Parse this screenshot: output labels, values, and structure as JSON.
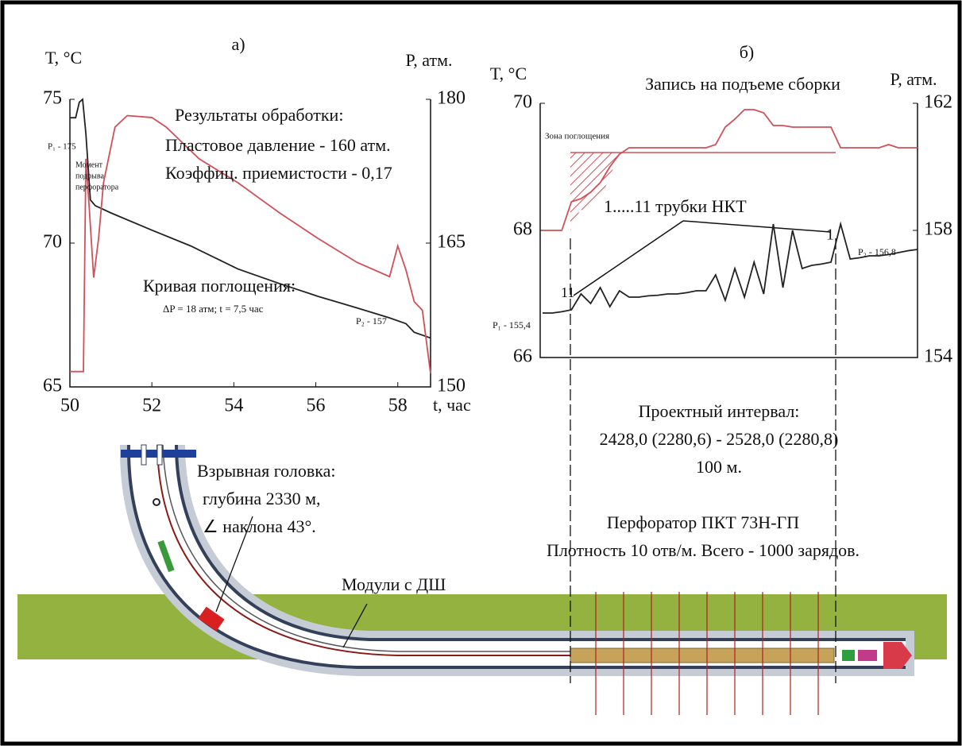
{
  "chart_data": [
    {
      "type": "line",
      "title": "а)",
      "y_label": "T, °C",
      "y2_label": "P, атм.",
      "x_label": "t, час",
      "xlim": [
        50,
        58.8
      ],
      "xticks": [
        50,
        52,
        54,
        56,
        58
      ],
      "ylim": [
        65,
        75
      ],
      "yticks": [
        65,
        70,
        75
      ],
      "y2lim": [
        150,
        180
      ],
      "y2ticks": [
        150,
        165,
        180
      ],
      "series": [
        {
          "color": "#222222",
          "axis": "y",
          "x": [
            50.0,
            50.14,
            50.23,
            50.31,
            50.39,
            50.5,
            50.62,
            51.0,
            52.0,
            52.95,
            54.1,
            55.1,
            56.05,
            57.0,
            57.8,
            58.2,
            58.4,
            58.8
          ],
          "values": [
            74.36,
            74.36,
            74.9,
            75,
            73.8,
            71.5,
            71.3,
            71.05,
            70.45,
            69.9,
            69.1,
            68.6,
            68.15,
            67.75,
            67.4,
            67.2,
            66.9,
            66.7
          ]
        },
        {
          "color": "#d0505a",
          "axis": "y2",
          "x": [
            50.0,
            50.33,
            50.39,
            50.47,
            50.58,
            50.7,
            50.82,
            51.1,
            51.4,
            52.0,
            52.35,
            53.15,
            54.1,
            55.1,
            56.05,
            57.0,
            57.8,
            58.0,
            58.2,
            58.4,
            58.6,
            58.8
          ],
          "values": [
            151.6,
            151.6,
            173.8,
            168.8,
            161.4,
            165.5,
            171.3,
            177.1,
            178.3,
            178.1,
            177.1,
            173.8,
            171.3,
            168.2,
            165.5,
            163.0,
            161.5,
            164.7,
            162.2,
            158.9,
            158.0,
            151.4
          ]
        }
      ],
      "annotations": [
        "Результаты  обработки:",
        "Пластовое давление - 160 атм.",
        "Коэффиц. приемистости - 0,17",
        "Кривая поглощения:",
        "ΔP = 18 атм;   t = 7,5 час",
        "P₁ - 175",
        "Момент",
        "подрыва",
        "перфоратора",
        "P₂ - 157"
      ]
    },
    {
      "type": "line",
      "title": "б)",
      "subtitle": "Запись на подъеме сборки",
      "y_label": "T, °C",
      "y2_label": "P, атм.",
      "ylim": [
        66,
        70
      ],
      "yticks": [
        66,
        68,
        70
      ],
      "y2lim": [
        154,
        162
      ],
      "y2ticks": [
        154,
        158,
        162
      ],
      "series": [
        {
          "color": "#222222",
          "axis": "y",
          "values": [
            66.7,
            66.7,
            66.72,
            66.75,
            67.0,
            66.85,
            67.1,
            66.8,
            67.05,
            66.95,
            66.95,
            66.97,
            66.98,
            67.0,
            67.0,
            67.02,
            67.05,
            67.05,
            67.3,
            66.9,
            67.4,
            66.95,
            67.5,
            67.0,
            68.1,
            67.1,
            68.0,
            67.4,
            67.45,
            67.47,
            67.5,
            68.1,
            67.55,
            67.57,
            67.6,
            67.6,
            67.62,
            67.65,
            67.68,
            67.7
          ]
        },
        {
          "color": "#d0505a",
          "axis": "y2",
          "values": [
            158.0,
            158.0,
            158.0,
            158.9,
            159.0,
            159.2,
            159.5,
            160.0,
            160.4,
            160.6,
            160.6,
            160.6,
            160.6,
            160.6,
            160.6,
            160.6,
            160.6,
            160.6,
            160.7,
            161.25,
            161.5,
            161.8,
            161.8,
            161.7,
            161.3,
            161.3,
            161.25,
            161.25,
            161.25,
            161.25,
            161.25,
            160.6,
            160.6,
            160.6,
            160.6,
            160.6,
            160.7,
            160.6,
            160.6,
            160.6
          ]
        }
      ],
      "annotations": [
        "Зона поглощения",
        "1.....11 трубки  НКТ",
        "11",
        "1",
        "P₁ - 155,4",
        "P₂ - 156,8"
      ]
    }
  ],
  "diagram": {
    "labels": [
      "Проектный интервал:",
      "2428,0 (2280,6) - 2528,0 (2280,8)",
      "100 м.",
      "Перфоратор   ПКТ 73Н-ГП",
      "Плотность 10 отв/м. Всего - 1000 зарядов.",
      "Взрывная головка:",
      "глубина  2330 м,",
      "∠ наклона 43°.",
      "Модули с ДШ"
    ]
  }
}
